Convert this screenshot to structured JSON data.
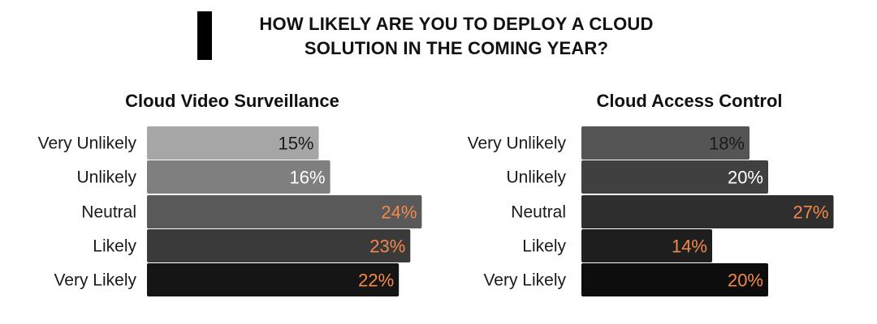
{
  "header": {
    "title_line1": "HOW LIKELY ARE YOU TO DEPLOY A CLOUD",
    "title_line2": "SOLUTION IN THE COMING YEAR?"
  },
  "chart_data": [
    {
      "type": "bar",
      "orientation": "horizontal",
      "title": "Cloud Video Surveillance",
      "categories": [
        "Very Unlikely",
        "Unlikely",
        "Neutral",
        "Likely",
        "Very Likely"
      ],
      "values": [
        15,
        16,
        24,
        23,
        22
      ],
      "value_labels": [
        "15%",
        "16%",
        "24%",
        "23%",
        "22%"
      ],
      "unit": "%",
      "bar_colors": [
        "#a6a6a6",
        "#7f7f7f",
        "#595959",
        "#3a3a3a",
        "#151515"
      ],
      "label_colors": [
        "#1a1a1a",
        "#ffffff",
        "#f4894b",
        "#f4894b",
        "#f4894b"
      ]
    },
    {
      "type": "bar",
      "orientation": "horizontal",
      "title": "Cloud Access Control",
      "categories": [
        "Very Unlikely",
        "Unlikely",
        "Neutral",
        "Likely",
        "Very Likely"
      ],
      "values": [
        18,
        20,
        27,
        14,
        20
      ],
      "value_labels": [
        "18%",
        "20%",
        "27%",
        "14%",
        "20%"
      ],
      "unit": "%",
      "bar_colors": [
        "#555555",
        "#404040",
        "#2e2e2e",
        "#1e1e1e",
        "#0d0d0d"
      ],
      "label_colors": [
        "#1a1a1a",
        "#ffffff",
        "#f4894b",
        "#f4894b",
        "#f4894b"
      ]
    }
  ],
  "colors": {
    "accent_orange": "#f4894b",
    "title_text": "#111111"
  }
}
